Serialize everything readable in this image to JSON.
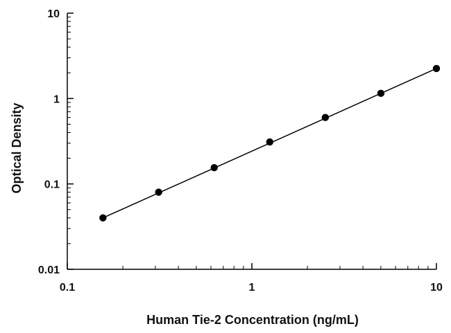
{
  "chart_data": {
    "type": "scatter",
    "title": "",
    "xlabel": "Human Tie-2 Concentration (ng/mL)",
    "ylabel": "Optical Density",
    "x_scale": "log",
    "y_scale": "log",
    "xlim": [
      0.1,
      10
    ],
    "ylim": [
      0.01,
      10
    ],
    "x_ticks": [
      0.1,
      1,
      10
    ],
    "x_tick_labels": [
      "0.1",
      "1",
      "10"
    ],
    "y_ticks": [
      0.01,
      0.1,
      1,
      10
    ],
    "y_tick_labels": [
      "0.01",
      "0.1",
      "1",
      "10"
    ],
    "grid": false,
    "legend": "none",
    "series": [
      {
        "x": [
          0.156,
          0.3125,
          0.625,
          1.25,
          2.5,
          5,
          10
        ],
        "y": [
          0.04,
          0.08,
          0.155,
          0.31,
          0.6,
          1.15,
          2.25
        ],
        "marker_color": "#000000",
        "fit_line": true
      }
    ]
  }
}
